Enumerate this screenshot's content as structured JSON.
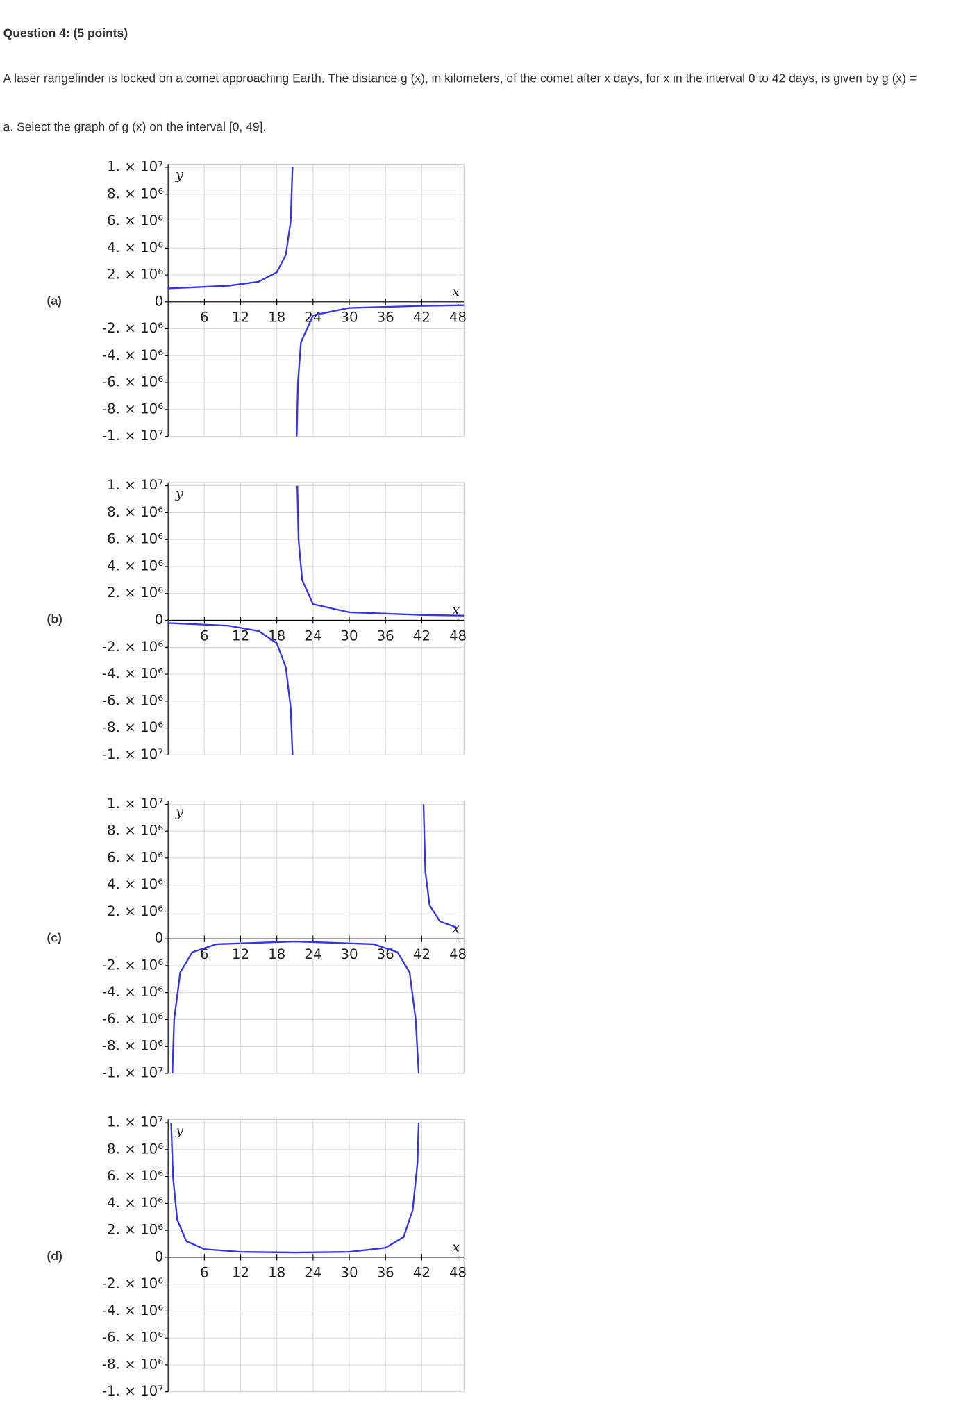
{
  "question": {
    "title": "Question 4: (5 points)",
    "text": "A laser rangefinder is locked on a comet approaching Earth. The distance g (x), in kilometers, of the comet after x days, for x in the interval 0 to 42 days, is given by g (x) =",
    "part_a": "a. Select the graph of g (x) on the interval [0, 49]."
  },
  "options": [
    {
      "label": "(a)",
      "chart": {
        "type": "line",
        "x_label": "x",
        "y_label": "y",
        "xlim": [
          0,
          49
        ],
        "ylim": [
          -10000000,
          10000000
        ],
        "xticks": [
          6,
          12,
          18,
          24,
          30,
          36,
          42,
          48
        ],
        "yticks": [
          {
            "value": 10000000,
            "label": "1. × 10⁷"
          },
          {
            "value": 8000000,
            "label": "8. × 10⁶"
          },
          {
            "value": 6000000,
            "label": "6. × 10⁶"
          },
          {
            "value": 4000000,
            "label": "4. × 10⁶"
          },
          {
            "value": 2000000,
            "label": "2. × 10⁶"
          },
          {
            "value": 0,
            "label": "0"
          },
          {
            "value": -2000000,
            "label": "-2. × 10⁶"
          },
          {
            "value": -4000000,
            "label": "-4. × 10⁶"
          },
          {
            "value": -6000000,
            "label": "-6. × 10⁶"
          },
          {
            "value": -8000000,
            "label": "-8. × 10⁶"
          },
          {
            "value": -10000000,
            "label": "-1. × 10⁷"
          }
        ],
        "series": [
          {
            "color": "#3333ee",
            "x": [
              0,
              10,
              15,
              18,
              19.5,
              20.3,
              20.6,
              null,
              21.3,
              21.5,
              22,
              24,
              30,
              42,
              49
            ],
            "values": [
              1000000,
              1200000,
              1500000,
              2200000,
              3500000,
              6000000,
              10000000,
              null,
              -10000000,
              -6000000,
              -3000000,
              -1000000,
              -450000,
              -300000,
              -250000
            ]
          }
        ]
      }
    },
    {
      "label": "(b)",
      "chart": {
        "type": "line",
        "x_label": "x",
        "y_label": "y",
        "xlim": [
          0,
          49
        ],
        "ylim": [
          -10000000,
          10000000
        ],
        "xticks": [
          6,
          12,
          18,
          24,
          30,
          36,
          42,
          48
        ],
        "yticks": [
          {
            "value": 10000000,
            "label": "1. × 10⁷"
          },
          {
            "value": 8000000,
            "label": "8. × 10⁶"
          },
          {
            "value": 6000000,
            "label": "6. × 10⁶"
          },
          {
            "value": 4000000,
            "label": "4. × 10⁶"
          },
          {
            "value": 2000000,
            "label": "2. × 10⁶"
          },
          {
            "value": 0,
            "label": "0"
          },
          {
            "value": -2000000,
            "label": "-2. × 10⁶"
          },
          {
            "value": -4000000,
            "label": "-4. × 10⁶"
          },
          {
            "value": -6000000,
            "label": "-6. × 10⁶"
          },
          {
            "value": -8000000,
            "label": "-8. × 10⁶"
          },
          {
            "value": -10000000,
            "label": "-1. × 10⁷"
          }
        ],
        "series": [
          {
            "color": "#3333ee",
            "x": [
              0,
              10,
              15,
              18,
              19.5,
              20.3,
              20.6,
              null,
              21.4,
              21.6,
              22.2,
              24,
              30,
              42,
              49
            ],
            "values": [
              -200000,
              -400000,
              -800000,
              -1700000,
              -3500000,
              -6500000,
              -10000000,
              null,
              10000000,
              6000000,
              3000000,
              1200000,
              600000,
              400000,
              350000
            ]
          }
        ]
      }
    },
    {
      "label": "(c)",
      "chart": {
        "type": "line",
        "x_label": "x",
        "y_label": "y",
        "xlim": [
          0,
          49
        ],
        "ylim": [
          -10000000,
          10000000
        ],
        "xticks": [
          6,
          12,
          18,
          24,
          30,
          36,
          42,
          48
        ],
        "yticks": [
          {
            "value": 10000000,
            "label": "1. × 10⁷"
          },
          {
            "value": 8000000,
            "label": "8. × 10⁶"
          },
          {
            "value": 6000000,
            "label": "6. × 10⁶"
          },
          {
            "value": 4000000,
            "label": "4. × 10⁶"
          },
          {
            "value": 2000000,
            "label": "2. × 10⁶"
          },
          {
            "value": 0,
            "label": "0"
          },
          {
            "value": -2000000,
            "label": "-2. × 10⁶"
          },
          {
            "value": -4000000,
            "label": "-4. × 10⁶"
          },
          {
            "value": -6000000,
            "label": "-6. × 10⁶"
          },
          {
            "value": -8000000,
            "label": "-8. × 10⁶"
          },
          {
            "value": -10000000,
            "label": "-1. × 10⁷"
          }
        ],
        "series": [
          {
            "color": "#3333ee",
            "x": [
              0.7,
              1,
              2,
              4,
              8,
              21,
              34,
              38,
              40,
              41,
              41.5,
              null,
              42.3,
              42.6,
              43.3,
              45,
              48
            ],
            "values": [
              -10000000,
              -6000000,
              -2500000,
              -1000000,
              -400000,
              -200000,
              -400000,
              -1000000,
              -2500000,
              -6000000,
              -10000000,
              null,
              10000000,
              5000000,
              2500000,
              1300000,
              800000
            ]
          }
        ]
      }
    },
    {
      "label": "(d)",
      "chart": {
        "type": "line",
        "x_label": "x",
        "y_label": "y",
        "xlim": [
          0,
          49
        ],
        "ylim": [
          -10000000,
          10000000
        ],
        "xticks": [
          6,
          12,
          18,
          24,
          30,
          36,
          42,
          48
        ],
        "yticks": [
          {
            "value": 10000000,
            "label": "1. × 10⁷"
          },
          {
            "value": 8000000,
            "label": "8. × 10⁶"
          },
          {
            "value": 6000000,
            "label": "6. × 10⁶"
          },
          {
            "value": 4000000,
            "label": "4. × 10⁶"
          },
          {
            "value": 2000000,
            "label": "2. × 10⁶"
          },
          {
            "value": 0,
            "label": "0"
          },
          {
            "value": -2000000,
            "label": "-2. × 10⁶"
          },
          {
            "value": -4000000,
            "label": "-4. × 10⁶"
          },
          {
            "value": -6000000,
            "label": "-6. × 10⁶"
          },
          {
            "value": -8000000,
            "label": "-8. × 10⁶"
          },
          {
            "value": -10000000,
            "label": "-1. × 10⁷"
          }
        ],
        "series": [
          {
            "color": "#3333ee",
            "x": [
              0.5,
              0.8,
              1.5,
              3,
              6,
              12,
              21,
              30,
              36,
              39,
              40.5,
              41.3,
              41.5
            ],
            "values": [
              10000000,
              6000000,
              2800000,
              1200000,
              600000,
              400000,
              350000,
              400000,
              700000,
              1500000,
              3500000,
              7000000,
              10000000
            ]
          }
        ]
      }
    }
  ]
}
